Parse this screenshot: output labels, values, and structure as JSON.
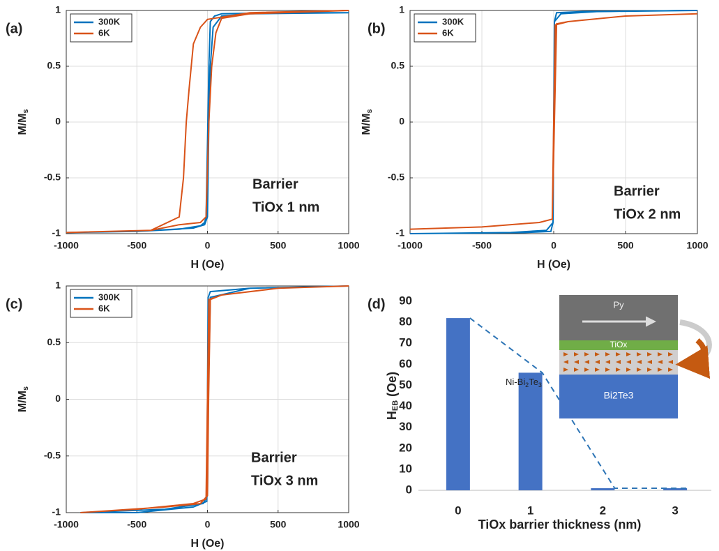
{
  "chart_data": [
    {
      "type": "line",
      "panel_label": "(a)",
      "xlabel": "H (Oe)",
      "ylabel": "M/M",
      "ylabel_sub": "s",
      "annotation": [
        "Barrier",
        "TiOx 1 nm"
      ],
      "xlim": [
        -1000,
        1000
      ],
      "ylim": [
        -1,
        1
      ],
      "xticks": [
        -1000,
        -500,
        0,
        500,
        1000
      ],
      "yticks": [
        -1,
        -0.5,
        0,
        0.5,
        1
      ],
      "grid": true,
      "legend": "upper left",
      "series": [
        {
          "name": "300K",
          "color": "#0072bd",
          "x": [
            1000,
            500,
            100,
            50,
            20,
            10,
            0,
            -10,
            -20,
            -50,
            -200,
            -500,
            -1000,
            -500,
            -100,
            -20,
            0,
            10,
            20,
            40,
            100,
            300,
            1000
          ],
          "values": [
            0.98,
            0.98,
            0.97,
            0.95,
            0.9,
            0.5,
            -0.2,
            -0.85,
            -0.9,
            -0.93,
            -0.96,
            -0.98,
            -0.99,
            -0.98,
            -0.95,
            -0.92,
            -0.85,
            0,
            0.5,
            0.85,
            0.95,
            0.97,
            0.98
          ]
        },
        {
          "name": "6K",
          "color": "#d95319",
          "x": [
            1000,
            300,
            0,
            -50,
            -100,
            -130,
            -150,
            -170,
            -200,
            -400,
            -1000,
            -400,
            -200,
            -50,
            -10,
            10,
            30,
            60,
            100,
            300,
            1000
          ],
          "values": [
            1,
            0.98,
            0.92,
            0.85,
            0.7,
            0.3,
            0,
            -0.5,
            -0.85,
            -0.97,
            -0.99,
            -0.97,
            -0.92,
            -0.9,
            -0.85,
            0,
            0.5,
            0.8,
            0.93,
            0.97,
            1
          ]
        }
      ]
    },
    {
      "type": "line",
      "panel_label": "(b)",
      "xlabel": "H (Oe)",
      "ylabel": "M/M",
      "ylabel_sub": "s",
      "annotation": [
        "Barrier",
        "TiOx 2 nm"
      ],
      "xlim": [
        -1000,
        1000
      ],
      "ylim": [
        -1,
        1
      ],
      "xticks": [
        -1000,
        -500,
        0,
        500,
        1000
      ],
      "yticks": [
        -1,
        -0.5,
        0,
        0.5,
        1
      ],
      "grid": true,
      "legend": "upper left",
      "series": [
        {
          "name": "300K",
          "color": "#0072bd",
          "x": [
            1000,
            200,
            20,
            5,
            0,
            -5,
            -50,
            -300,
            -1000,
            -200,
            -20,
            -5,
            0,
            5,
            50,
            300,
            1000
          ],
          "values": [
            1,
            0.99,
            0.98,
            0.9,
            0,
            -0.9,
            -0.97,
            -0.99,
            -1,
            -0.99,
            -0.98,
            -0.9,
            0,
            0.9,
            0.97,
            0.99,
            1
          ]
        },
        {
          "name": "6K",
          "color": "#d95319",
          "x": [
            1000,
            500,
            100,
            10,
            0,
            -10,
            -100,
            -500,
            -1000,
            -500,
            -100,
            -10,
            5,
            20,
            100,
            500,
            1000
          ],
          "values": [
            0.97,
            0.95,
            0.9,
            0.87,
            0,
            -0.87,
            -0.9,
            -0.94,
            -0.96,
            -0.94,
            -0.9,
            -0.87,
            0,
            0.88,
            0.9,
            0.95,
            0.97
          ]
        }
      ]
    },
    {
      "type": "line",
      "panel_label": "(c)",
      "xlabel": "H (Oe)",
      "ylabel": "M/M",
      "ylabel_sub": "s",
      "annotation": [
        "Barrier",
        "TiOx 3 nm"
      ],
      "xlim": [
        -1000,
        1000
      ],
      "ylim": [
        -1,
        1
      ],
      "xticks": [
        -1000,
        -500,
        0,
        500,
        1000
      ],
      "yticks": [
        -1,
        -0.5,
        0,
        0.5,
        1
      ],
      "grid": true,
      "legend": "upper left",
      "series": [
        {
          "name": "300K",
          "color": "#0072bd",
          "x": [
            1000,
            300,
            20,
            5,
            0,
            -5,
            -100,
            -500,
            -900,
            -300,
            -30,
            0,
            5,
            20,
            300,
            1000
          ],
          "values": [
            1,
            0.98,
            0.95,
            0.9,
            0,
            -0.9,
            -0.95,
            -1,
            -1,
            -0.97,
            -0.92,
            -0.85,
            0,
            0.9,
            0.98,
            1
          ]
        },
        {
          "name": "6K",
          "color": "#d95319",
          "x": [
            1000,
            500,
            100,
            10,
            0,
            -10,
            -100,
            -500,
            -900,
            -300,
            -50,
            0,
            8,
            20,
            100,
            500,
            1000
          ],
          "values": [
            1,
            0.98,
            0.92,
            0.88,
            0,
            -0.88,
            -0.92,
            -0.97,
            -1,
            -0.95,
            -0.92,
            -0.85,
            0,
            0.88,
            0.92,
            0.98,
            1
          ]
        }
      ]
    },
    {
      "type": "bar",
      "panel_label": "(d)",
      "xlabel": "TiOx barrier thickness (nm)",
      "ylabel": "H",
      "ylabel_sub": "EB",
      "ylabel_unit": "(Oe)",
      "categories": [
        "0",
        "1",
        "2",
        "3"
      ],
      "values": [
        82,
        56,
        1,
        1
      ],
      "color": "#4472c4",
      "trendline": true,
      "ylim": [
        0,
        90
      ],
      "yticks": [
        0,
        10,
        20,
        30,
        40,
        50,
        60,
        70,
        80,
        90
      ],
      "inset": {
        "top": "Py",
        "barrier": "TiOx",
        "interface": [
          "Ni-Bi",
          "2",
          "Te",
          "3"
        ],
        "bottom": "Bi2Te3"
      }
    }
  ]
}
